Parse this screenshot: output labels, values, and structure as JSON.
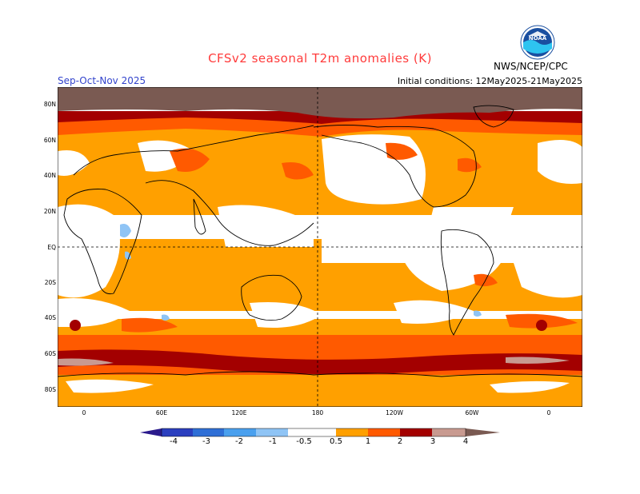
{
  "header": {
    "title": "CFSv2 seasonal T2m anomalies (K)",
    "season": "Sep-Oct-Nov 2025",
    "initial_conditions": "Initial conditions: 12May2025-21May2025",
    "organization": "NWS/NCEP/CPC",
    "logo_text": "NOAA"
  },
  "axes": {
    "lat_labels": [
      "80N",
      "60N",
      "40N",
      "20N",
      "EQ",
      "20S",
      "40S",
      "60S",
      "80S"
    ],
    "lon_labels": [
      "0",
      "60E",
      "120E",
      "180",
      "120W",
      "60W",
      "0"
    ]
  },
  "legend": {
    "labels": [
      "-4",
      "-3",
      "-2",
      "-1",
      "-0.5",
      "0.5",
      "1",
      "2",
      "3",
      "4"
    ],
    "colors": [
      "#2a1a8c",
      "#2b3fbf",
      "#2f6fd6",
      "#4aa0ee",
      "#8fc4f5",
      "#ffffff",
      "#ffa000",
      "#ff5a00",
      "#e81e00",
      "#a30000",
      "#c89a90",
      "#7a5a52"
    ]
  },
  "map": {
    "projection": "cylindrical equidistant",
    "lat_range": [
      -90,
      90
    ],
    "lon_range": [
      -20,
      380
    ],
    "palette": {
      "anom_0_5_1": "#ffa000",
      "anom_1_2": "#ff5a00",
      "anom_2_3": "#e81e00",
      "anom_3_4": "#a30000",
      "anom_4_plus": "#7a5a52",
      "anom_neg_0_5_1": "#8fc4f5",
      "anom_neg_1_2": "#4aa0ee"
    }
  }
}
